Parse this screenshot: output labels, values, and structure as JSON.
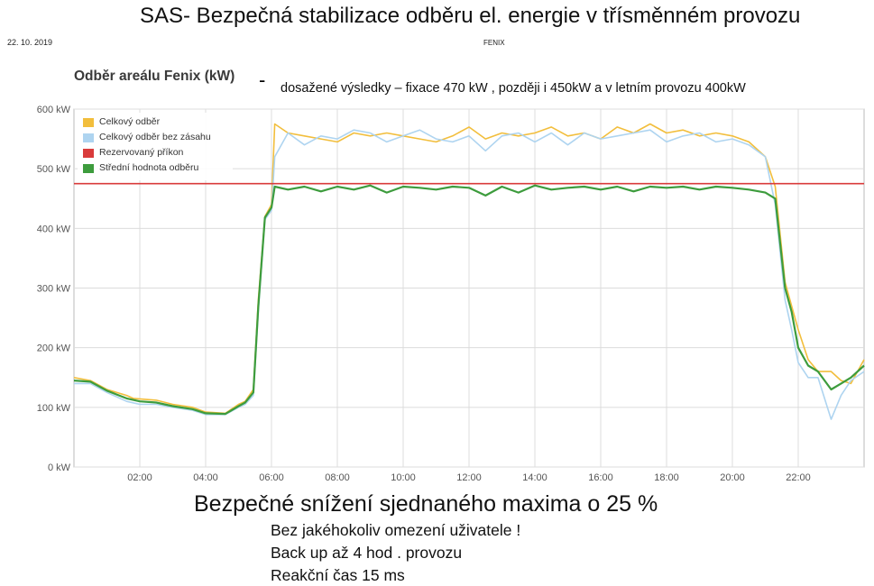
{
  "slide": {
    "title": "SAS- Bezpečná stabilizace odběru el. energie v třísměnném provozu",
    "date": "22. 10. 2019",
    "source": "FENIX",
    "note_dash": "-",
    "note": "dosažené výsledky – fixace 470 kW , později i 450kW  a v letním provozu 400kW",
    "headline": "Bezpečné snížení  sjednaného maxima o 25 %",
    "bullets": [
      "Bez jakéhokoliv omezení uživatele !",
      "Back up až 4 hod . provozu",
      "Reakční čas 15 ms"
    ]
  },
  "colors": {
    "total": "#f2be3c",
    "without": "#aed4f0",
    "reserved": "#d93b3b",
    "mean": "#3d9c3d",
    "grid": "#dcdcdc"
  },
  "chart_data": {
    "type": "line",
    "title": "Odběr areálu Fenix (kW)",
    "x_unit": "hour of day",
    "xlim": [
      0,
      24
    ],
    "ylim": [
      0,
      600
    ],
    "x_ticks": [
      "02:00",
      "04:00",
      "06:00",
      "08:00",
      "10:00",
      "12:00",
      "14:00",
      "16:00",
      "18:00",
      "20:00",
      "22:00"
    ],
    "y_ticks": [
      "0 kW",
      "100 kW",
      "200 kW",
      "300 kW",
      "400 kW",
      "500 kW",
      "600 kW"
    ],
    "grid": true,
    "legend_position": "top-left",
    "series": [
      {
        "name": "Celkový odběr",
        "x": [
          0,
          0.5,
          1,
          1.6,
          1.8,
          2.5,
          3,
          3.6,
          4,
          4.6,
          5,
          5.2,
          5.45,
          5.6,
          5.8,
          6.0,
          6.1,
          6.5,
          7,
          7.5,
          8,
          8.5,
          9,
          9.5,
          10,
          10.5,
          11,
          11.5,
          12,
          12.5,
          13,
          13.5,
          14,
          14.5,
          15,
          15.5,
          16,
          16.5,
          17,
          17.5,
          18,
          18.5,
          19,
          19.5,
          20,
          20.5,
          21,
          21.3,
          21.6,
          21.8,
          22,
          22.3,
          22.6,
          23,
          23.3,
          23.6,
          24
        ],
        "y": [
          150,
          145,
          130,
          120,
          115,
          112,
          105,
          100,
          92,
          90,
          105,
          110,
          130,
          280,
          420,
          440,
          575,
          560,
          555,
          550,
          545,
          560,
          555,
          560,
          555,
          550,
          545,
          555,
          570,
          550,
          560,
          555,
          560,
          570,
          555,
          560,
          550,
          570,
          560,
          575,
          560,
          565,
          555,
          560,
          555,
          545,
          520,
          470,
          310,
          270,
          230,
          180,
          160,
          160,
          145,
          140,
          180
        ]
      },
      {
        "name": "Celkový odběr bez zásahu",
        "x": [
          0,
          0.5,
          1,
          1.6,
          2,
          2.5,
          3,
          3.6,
          4,
          4.6,
          5,
          5.2,
          5.45,
          5.6,
          5.8,
          6.0,
          6.1,
          6.5,
          7,
          7.5,
          8,
          8.5,
          9,
          9.5,
          10,
          10.5,
          11,
          11.5,
          12,
          12.5,
          13,
          13.5,
          14,
          14.5,
          15,
          15.5,
          16,
          16.5,
          17,
          17.5,
          18,
          18.5,
          19,
          19.5,
          20,
          20.5,
          21,
          21.3,
          21.6,
          21.8,
          22,
          22.3,
          22.6,
          23,
          23.3,
          23.6,
          24
        ],
        "y": [
          140,
          140,
          125,
          110,
          105,
          105,
          100,
          95,
          88,
          88,
          100,
          105,
          120,
          260,
          415,
          430,
          520,
          560,
          540,
          555,
          550,
          565,
          560,
          545,
          555,
          565,
          550,
          545,
          555,
          530,
          555,
          560,
          545,
          560,
          540,
          560,
          550,
          555,
          560,
          565,
          545,
          555,
          560,
          545,
          550,
          540,
          520,
          440,
          280,
          230,
          175,
          150,
          150,
          80,
          120,
          145,
          160
        ]
      },
      {
        "name": "Rezervovaný příkon",
        "x": [
          0,
          24
        ],
        "y": [
          475,
          475
        ]
      },
      {
        "name": "Střední hodnota odběru",
        "x": [
          0,
          0.5,
          1,
          1.6,
          2,
          2.5,
          3,
          3.6,
          4,
          4.6,
          5,
          5.2,
          5.45,
          5.6,
          5.8,
          6.0,
          6.1,
          6.5,
          7,
          7.5,
          8,
          8.5,
          9,
          9.5,
          10,
          10.5,
          11,
          11.5,
          12,
          12.5,
          13,
          13.5,
          14,
          14.5,
          15,
          15.5,
          16,
          16.5,
          17,
          17.5,
          18,
          18.5,
          19,
          19.5,
          20,
          20.5,
          21,
          21.3,
          21.6,
          21.8,
          22,
          22.3,
          22.6,
          23,
          23.3,
          23.6,
          24
        ],
        "y": [
          145,
          143,
          128,
          115,
          110,
          108,
          102,
          97,
          90,
          89,
          102,
          108,
          125,
          270,
          418,
          435,
          470,
          465,
          470,
          462,
          470,
          465,
          472,
          460,
          470,
          468,
          465,
          470,
          468,
          455,
          470,
          460,
          472,
          465,
          468,
          470,
          465,
          470,
          462,
          470,
          468,
          470,
          465,
          470,
          468,
          465,
          460,
          450,
          300,
          260,
          200,
          170,
          160,
          130,
          140,
          150,
          170
        ]
      }
    ]
  }
}
